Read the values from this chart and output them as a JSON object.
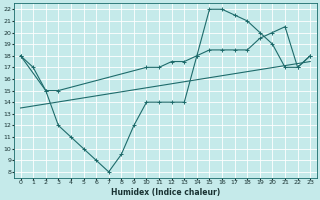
{
  "xlabel": "Humidex (Indice chaleur)",
  "bg_color": "#c5eaea",
  "line_color": "#1e6b6b",
  "grid_color": "#b0dede",
  "xlim": [
    -0.5,
    23.5
  ],
  "ylim": [
    7.5,
    22.5
  ],
  "yticks": [
    8,
    9,
    10,
    11,
    12,
    13,
    14,
    15,
    16,
    17,
    18,
    19,
    20,
    21,
    22
  ],
  "xticks": [
    0,
    1,
    2,
    3,
    4,
    5,
    6,
    7,
    8,
    9,
    10,
    11,
    12,
    13,
    14,
    15,
    16,
    17,
    18,
    19,
    20,
    21,
    22,
    23
  ],
  "series1_x": [
    0,
    1,
    2,
    3,
    4,
    5,
    6,
    7,
    8,
    9,
    10,
    11,
    12,
    13,
    14,
    15,
    16,
    17,
    18,
    19,
    20,
    21,
    22,
    23
  ],
  "series1_y": [
    18,
    17,
    15,
    12,
    11,
    10,
    9,
    8,
    9.5,
    12,
    14,
    14,
    14,
    14,
    18,
    22,
    22,
    21.5,
    21,
    20,
    19,
    17,
    17,
    18
  ],
  "series2_x": [
    0,
    2,
    3,
    10,
    11,
    12,
    13,
    14,
    15,
    16,
    17,
    18,
    19,
    20,
    21,
    22,
    23
  ],
  "series2_y": [
    18,
    15,
    15,
    17,
    17,
    17.5,
    17.5,
    18,
    18.5,
    18.5,
    18.5,
    18.5,
    19.5,
    20,
    20.5,
    17,
    18
  ],
  "series3_x": [
    0,
    23
  ],
  "series3_y": [
    13.5,
    17.5
  ]
}
